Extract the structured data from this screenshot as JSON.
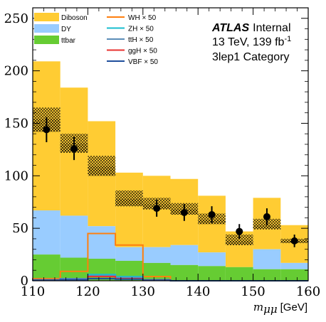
{
  "chart_data": {
    "type": "bar",
    "stacked": true,
    "x_bin_edges": [
      110,
      115,
      120,
      125,
      130,
      135,
      140,
      145,
      150,
      155,
      160
    ],
    "xlabel_math": "m",
    "xlabel_sub": "μμ",
    "xlabel_unit": "[GeV]",
    "xlim": [
      110,
      160
    ],
    "ylim": [
      0,
      260
    ],
    "x_ticks": [
      110,
      120,
      130,
      140,
      150,
      160
    ],
    "y_ticks": [
      0,
      50,
      100,
      150,
      200,
      250
    ],
    "series": [
      {
        "name": "Diboson",
        "color": "#ffcc33",
        "values": [
          142,
          122,
          100,
          71,
          68,
          63,
          54,
          34,
          49,
          36
        ]
      },
      {
        "name": "DY",
        "color": "#99ccff",
        "values": [
          42,
          40,
          31,
          13,
          15,
          19,
          13,
          0,
          19,
          6
        ]
      },
      {
        "name": "ttbar",
        "color": "#66cc33",
        "values": [
          25,
          22,
          21,
          19,
          17,
          15,
          14,
          13,
          11,
          11
        ]
      }
    ],
    "uncertainty_band": {
      "down": [
        142,
        122,
        100,
        71,
        68,
        63,
        54,
        34,
        49,
        36
      ],
      "up": [
        165,
        140,
        119,
        86,
        79,
        74,
        64,
        44,
        59,
        40
      ]
    },
    "stat_band": {
      "down": [
        142,
        122,
        100,
        71,
        68,
        63,
        54,
        34,
        49,
        36
      ],
      "up": [
        154,
        131,
        109,
        78,
        73,
        68,
        58,
        38,
        53,
        38
      ]
    },
    "data_points": {
      "x": [
        112.5,
        117.5,
        142.5,
        137.5,
        132.5,
        147.5,
        152.5,
        157.5
      ],
      "y": [
        144,
        126,
        63,
        65,
        69,
        47,
        61,
        38
      ],
      "err": [
        12,
        11,
        8,
        8,
        8,
        7,
        8,
        6
      ]
    },
    "signals": [
      {
        "name": "WH",
        "color": "#ff7f0e",
        "scale": "× 50",
        "values": [
          2,
          9,
          45,
          34,
          4,
          0,
          0,
          0,
          0,
          0
        ]
      },
      {
        "name": "ZH",
        "color": "#17becf",
        "scale": "× 50",
        "values": [
          1,
          2,
          6,
          4,
          1,
          0,
          0,
          0,
          0,
          0
        ]
      },
      {
        "name": "ttH",
        "color": "#5b8db8",
        "scale": "× 50",
        "values": [
          1,
          2,
          5,
          3,
          1,
          0,
          0,
          0,
          0,
          0
        ]
      },
      {
        "name": "ggH",
        "color": "#e8312f",
        "scale": "× 50",
        "values": [
          0.5,
          1,
          4,
          2,
          0.5,
          0,
          0,
          0,
          0,
          0
        ]
      },
      {
        "name": "VBF",
        "color": "#1f4e9c",
        "scale": "× 50",
        "values": [
          0.5,
          1,
          2,
          1.5,
          0.5,
          0,
          0,
          0,
          0,
          0
        ]
      }
    ],
    "annotation": {
      "atlas": "ATLAS",
      "internal": "Internal",
      "energy_line_prefix": "13 TeV, 139 fb",
      "energy_line_sup": "-1",
      "category": "3lep1 Category"
    }
  }
}
